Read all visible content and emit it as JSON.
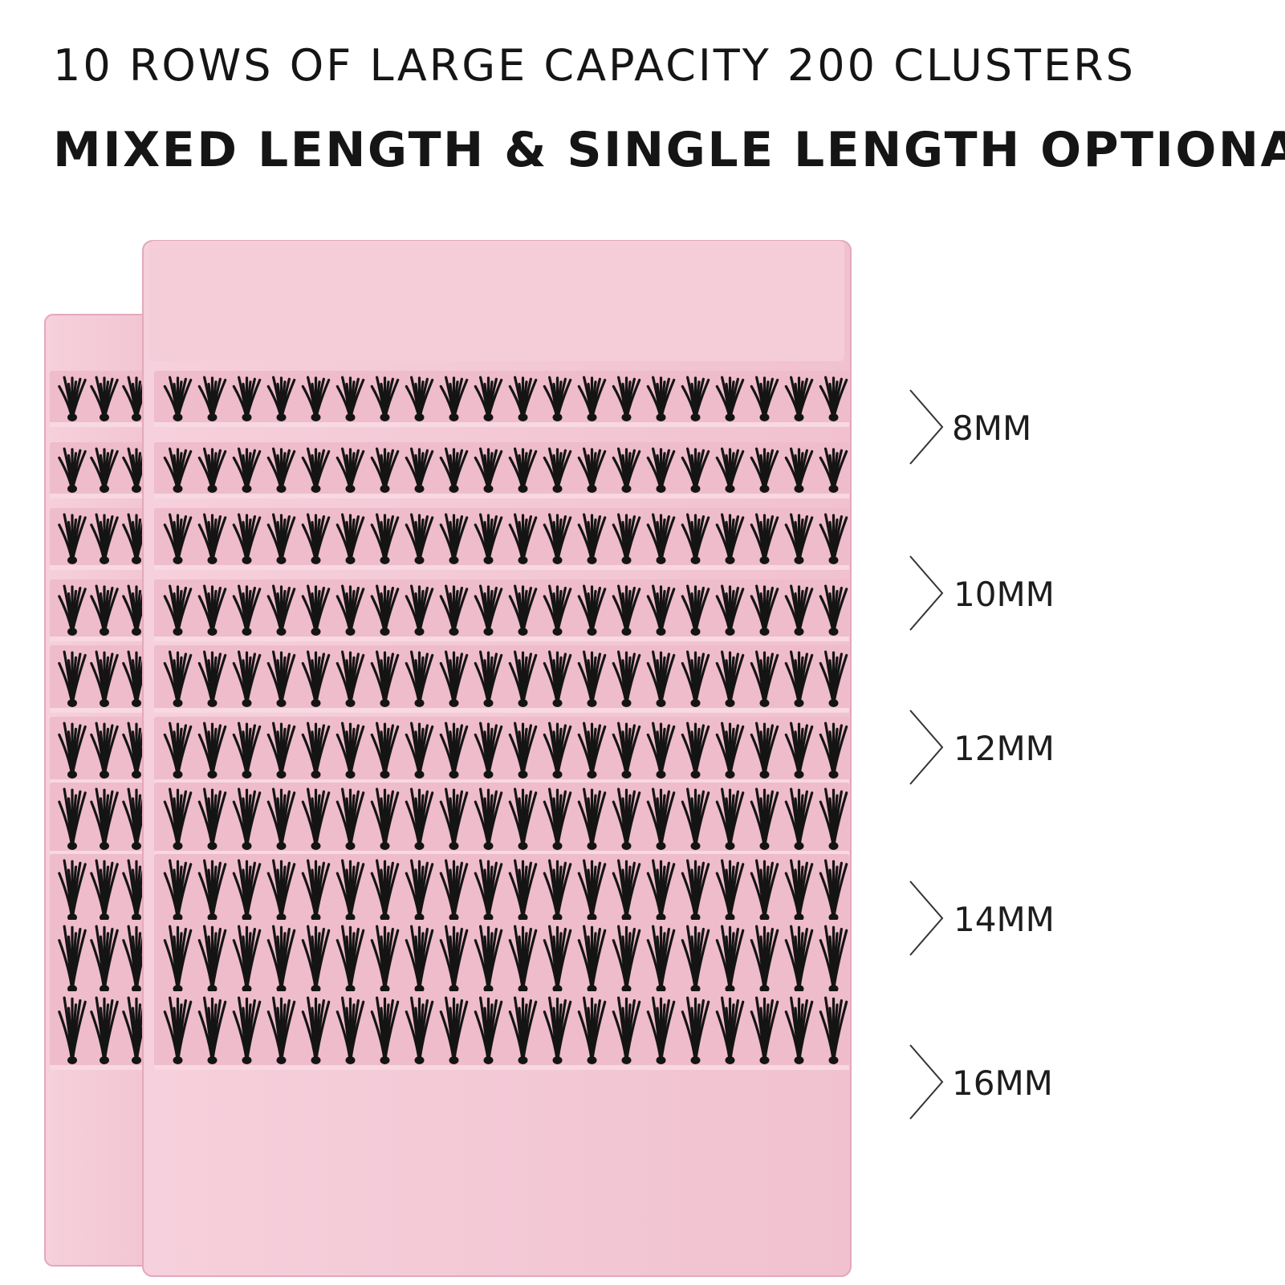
{
  "headline": {
    "line1": "10 ROWS OF LARGE CAPACITY 200 CLUSTERS",
    "line2": "MIXED LENGTH & SINGLE LENGTH OPTIONAL"
  },
  "length_labels": [
    "8MM",
    "10MM",
    "12MM",
    "14MM",
    "16MM"
  ],
  "tray": {
    "color": "#f3c6d3",
    "rows": 10
  },
  "lash_color": "#141414"
}
